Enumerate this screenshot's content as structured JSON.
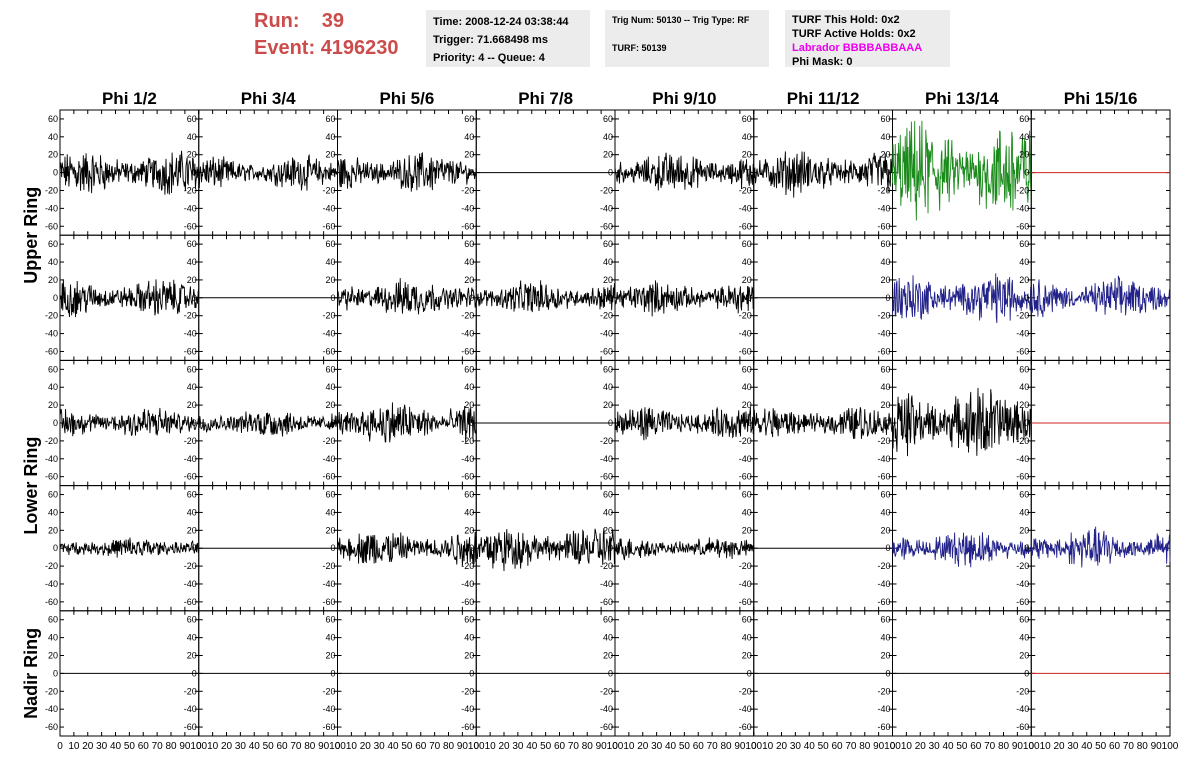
{
  "header": {
    "run_label": "Run:",
    "run_value": "39",
    "event_label": "Event:",
    "event_value": "4196230",
    "time": "Time: 2008-12-24 03:38:44",
    "trigger": "Trigger: 71.668498 ms",
    "priority_queue": "Priority: 4 -- Queue: 4",
    "trig_num_type": "Trig Num: 50130 -- Trig Type: RF",
    "turf": "TURF: 50139",
    "turf_this_hold": "TURF This Hold: 0x2",
    "turf_active_holds": "TURF Active Holds: 0x2",
    "labrador": "Labrador BBBBABBAAA",
    "phi_mask": "Phi Mask: 0"
  },
  "colors": {
    "run_text": "#cc4c4c",
    "labrador_text": "#ee00ee",
    "trace_black": "#000000",
    "trace_green": "#1a8a1a",
    "trace_blue": "#22228a",
    "trace_red": "#cc2222",
    "box_bg": "#ececec"
  },
  "chart_data": {
    "type": "line",
    "columns": [
      "Phi 1/2",
      "Phi 3/4",
      "Phi 5/6",
      "Phi 7/8",
      "Phi 9/10",
      "Phi 11/12",
      "Phi 13/14",
      "Phi 15/16"
    ],
    "rows": [
      "Upper Ring",
      "Upper Ring",
      "Lower Ring",
      "Lower Ring",
      "Nadir Ring"
    ],
    "ring_labels": [
      {
        "label": "Upper Ring",
        "rows": [
          0,
          1
        ]
      },
      {
        "label": "Lower Ring",
        "rows": [
          2,
          3
        ]
      },
      {
        "label": "Nadir Ring",
        "rows": [
          4
        ]
      }
    ],
    "xlim": [
      0,
      100
    ],
    "ylim": [
      -70,
      70
    ],
    "x_ticks": [
      0,
      10,
      20,
      30,
      40,
      50,
      60,
      70,
      80,
      90,
      100
    ],
    "y_ticks": [
      -60,
      -40,
      -20,
      0,
      20,
      40,
      60
    ],
    "panels": [
      [
        "noise",
        "noise",
        "noise",
        "flat",
        "noise",
        "noise",
        "noise-green",
        "flat-red"
      ],
      [
        "noise",
        "flat",
        "noise",
        "noise",
        "noise",
        "flat",
        "noise-blue",
        "noise-blue"
      ],
      [
        "noise",
        "noise",
        "noise",
        "flat",
        "noise",
        "noise",
        "noise",
        "flat-red"
      ],
      [
        "noise",
        "flat",
        "noise",
        "noise",
        "noise",
        "flat",
        "noise-blue",
        "noise-blue"
      ],
      [
        "flat",
        "flat",
        "flat",
        "flat",
        "flat",
        "flat",
        "flat",
        "flat-red"
      ]
    ],
    "amplitudes": [
      [
        20,
        15,
        18,
        0,
        18,
        20,
        45,
        0
      ],
      [
        17,
        0,
        17,
        15,
        15,
        0,
        22,
        18
      ],
      [
        15,
        13,
        20,
        0,
        15,
        15,
        32,
        0
      ],
      [
        10,
        0,
        17,
        20,
        10,
        0,
        16,
        18
      ],
      [
        0,
        0,
        0,
        0,
        0,
        0,
        0,
        0
      ]
    ]
  }
}
